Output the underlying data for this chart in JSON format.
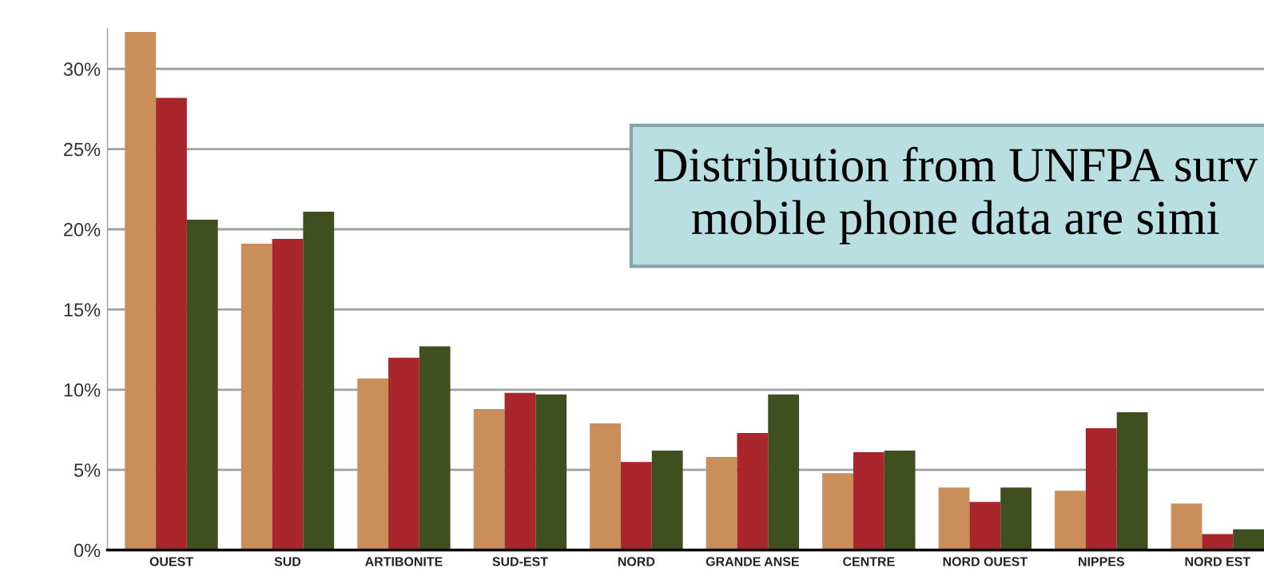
{
  "chart_data": {
    "type": "bar",
    "categories": [
      "OUEST",
      "SUD",
      "ARTIBONITE",
      "SUD-EST",
      "NORD",
      "GRANDE ANSE",
      "CENTRE",
      "NORD OUEST",
      "NIPPES",
      "NORD EST"
    ],
    "series": [
      {
        "color": "#c98e5a",
        "values": [
          32.3,
          19.1,
          10.7,
          8.8,
          7.9,
          5.8,
          4.8,
          3.9,
          3.7,
          2.9
        ]
      },
      {
        "color": "#a8262c",
        "values": [
          28.2,
          19.4,
          12.0,
          9.8,
          5.5,
          7.3,
          6.1,
          3.0,
          7.6,
          1.0
        ]
      },
      {
        "color": "#3f4f1f",
        "values": [
          20.6,
          21.1,
          12.7,
          9.7,
          6.2,
          9.7,
          6.2,
          3.9,
          8.6,
          1.3
        ]
      }
    ],
    "ylim": [
      0,
      32.5
    ],
    "yticks": [
      {
        "value": 0,
        "label": "0%"
      },
      {
        "value": 5,
        "label": "5%"
      },
      {
        "value": 10,
        "label": "10%"
      },
      {
        "value": 15,
        "label": "15%"
      },
      {
        "value": 20,
        "label": "20%"
      },
      {
        "value": 25,
        "label": "25%"
      },
      {
        "value": 30,
        "label": "30%"
      }
    ],
    "grid": "y",
    "legend": false,
    "annotations": [
      "Distribution from UNFPA surv\nmobile phone data are simi"
    ]
  }
}
